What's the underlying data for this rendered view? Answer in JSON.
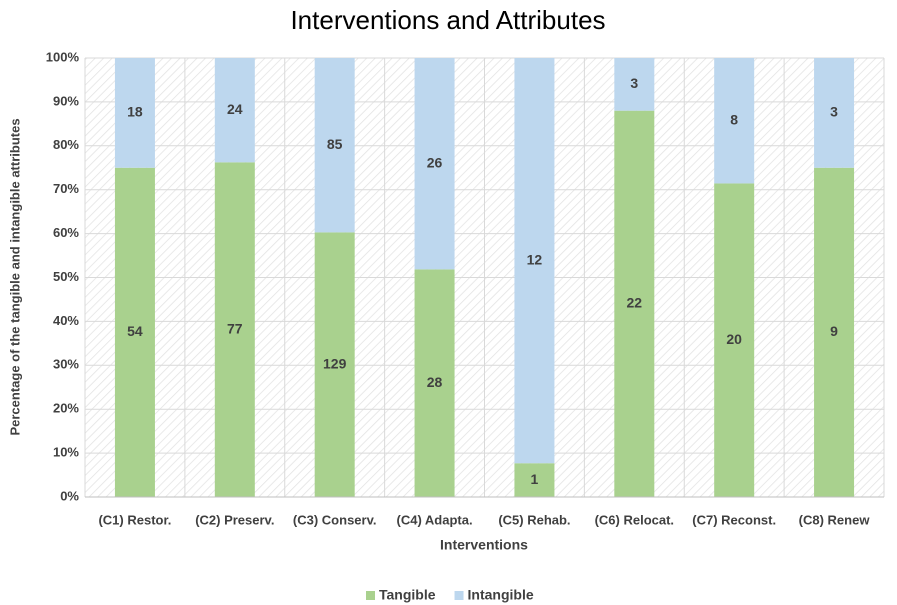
{
  "chart_data": {
    "type": "bar",
    "stacking": "percent",
    "title": "Interventions and Attributes",
    "x_label": "Interventions",
    "y_label": "Percentage of the tangible and intangible attributes",
    "categories": [
      "(C1) Restor.",
      "(C2) Preserv.",
      "(C3) Conserv.",
      "(C4) Adapta.",
      "(C5) Rehab.",
      "(C6) Relocat.",
      "(C7) Reconst.",
      "(C8) Renew"
    ],
    "series": [
      {
        "name": "Tangible",
        "color": "#a9d18e",
        "values": [
          54,
          77,
          129,
          28,
          1,
          22,
          20,
          9
        ]
      },
      {
        "name": "Intangible",
        "color": "#bdd7ee",
        "values": [
          18,
          24,
          85,
          26,
          12,
          3,
          8,
          3
        ]
      }
    ],
    "ylim": [
      0,
      100
    ],
    "yticks": [
      {
        "value": 0,
        "label": "0%"
      },
      {
        "value": 10,
        "label": "10%"
      },
      {
        "value": 20,
        "label": "20%"
      },
      {
        "value": 30,
        "label": "30%"
      },
      {
        "value": 40,
        "label": "40%"
      },
      {
        "value": 50,
        "label": "50%"
      },
      {
        "value": 60,
        "label": "60%"
      },
      {
        "value": 70,
        "label": "70%"
      },
      {
        "value": 80,
        "label": "80%"
      },
      {
        "value": 90,
        "label": "90%"
      },
      {
        "value": 100,
        "label": "100%"
      }
    ],
    "grid": true,
    "legend": "bottom"
  }
}
